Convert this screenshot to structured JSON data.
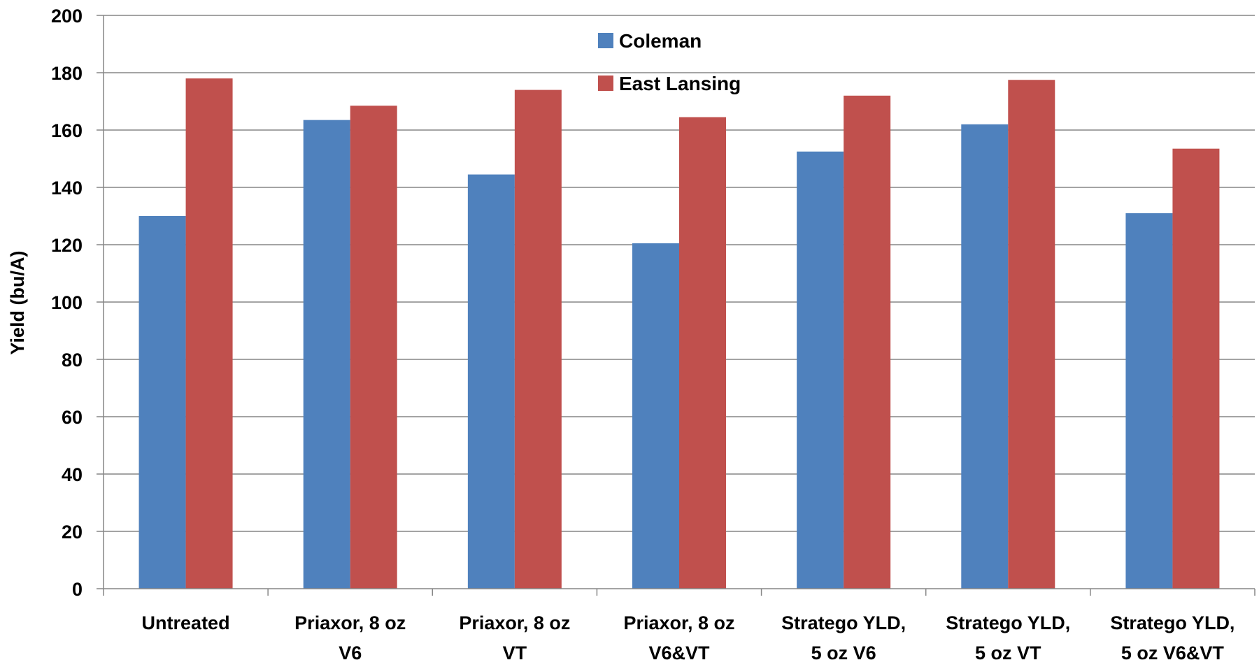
{
  "chart_data": {
    "type": "bar",
    "title": "",
    "xlabel": "",
    "ylabel": "Yield (bu/A)",
    "ylim": [
      0,
      200
    ],
    "yticks": [
      0,
      20,
      40,
      60,
      80,
      100,
      120,
      140,
      160,
      180,
      200
    ],
    "grid": true,
    "legend_position": "top-center",
    "categories": [
      [
        "Untreated"
      ],
      [
        "Priaxor, 8 oz",
        "V6"
      ],
      [
        "Priaxor, 8 oz",
        "VT"
      ],
      [
        "Priaxor, 8 oz",
        "V6&VT"
      ],
      [
        "Stratego YLD,",
        "5 oz V6"
      ],
      [
        "Stratego YLD,",
        "5 oz VT"
      ],
      [
        "Stratego YLD,",
        "5 oz V6&VT"
      ]
    ],
    "series": [
      {
        "name": "Coleman",
        "color": "#4F81BD",
        "values": [
          130,
          163.5,
          144.5,
          120.5,
          152.5,
          162,
          131
        ]
      },
      {
        "name": "East Lansing",
        "color": "#C0504D",
        "values": [
          178,
          168.5,
          174,
          164.5,
          172,
          177.5,
          153.5
        ]
      }
    ]
  }
}
